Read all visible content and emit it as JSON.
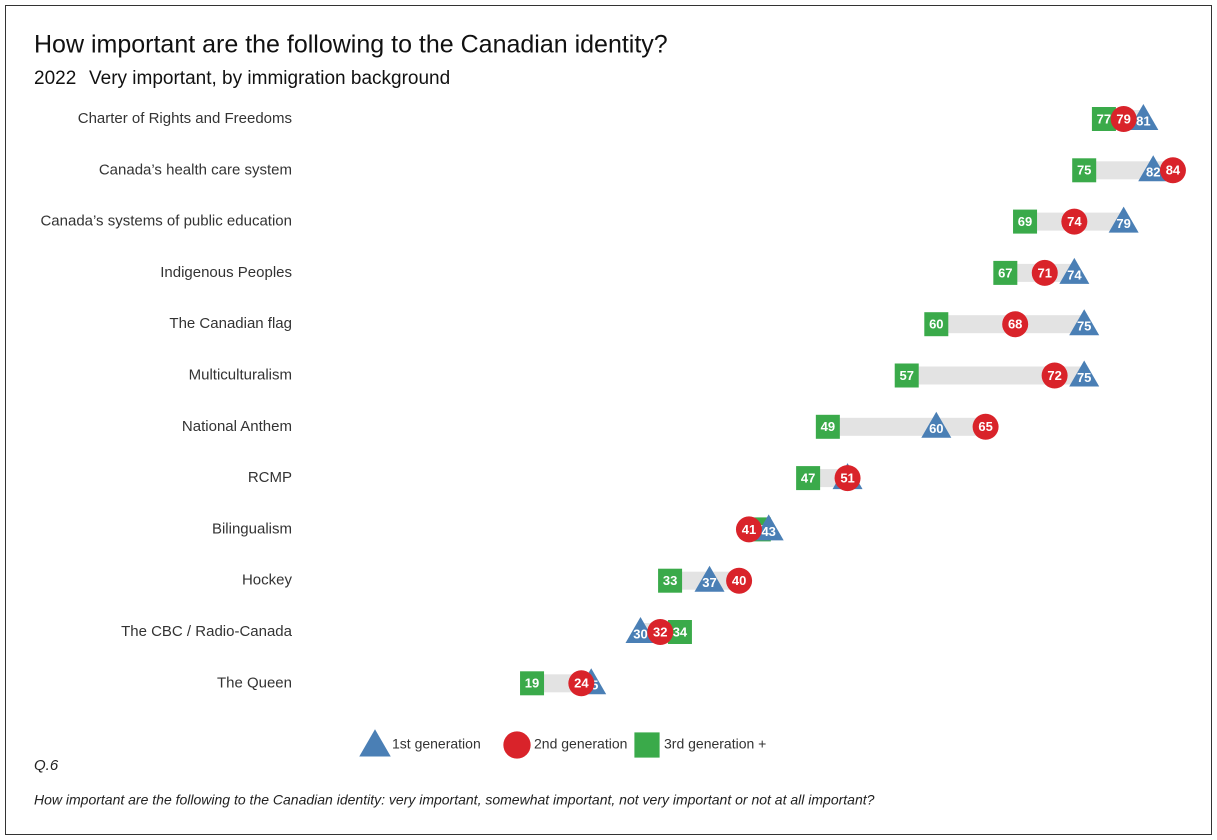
{
  "chart_data": {
    "type": "dot",
    "title": "How important are the following to the Canadian identity?",
    "year": "2022",
    "subtitle": "Very important, by immigration background",
    "categories": [
      "Charter of Rights and Freedoms",
      "Canada’s health care system",
      "Canada’s systems of public education",
      "Indigenous Peoples",
      "The Canadian flag",
      "Multiculturalism",
      "National Anthem",
      "RCMP",
      "Bilingualism",
      "Hockey",
      "The CBC / Radio-Canada",
      "The Queen"
    ],
    "series": [
      {
        "name": "1st generation",
        "color": "#4a7fb5",
        "marker": "triangle",
        "values": [
          81,
          82,
          79,
          74,
          75,
          75,
          60,
          51,
          43,
          37,
          30,
          25
        ]
      },
      {
        "name": "2nd generation",
        "color": "#d9232a",
        "marker": "circle",
        "values": [
          79,
          84,
          74,
          71,
          68,
          72,
          65,
          51,
          41,
          40,
          32,
          24
        ]
      },
      {
        "name": "3rd generation +",
        "color": "#3aaa4a",
        "marker": "square",
        "values": [
          77,
          75,
          69,
          67,
          60,
          57,
          49,
          47,
          42,
          33,
          34,
          19
        ]
      }
    ],
    "footnote_id": "Q.6",
    "footnote": "How important are the following to the Canadian identity: very important, somewhat important, not very important or not at all important?"
  }
}
